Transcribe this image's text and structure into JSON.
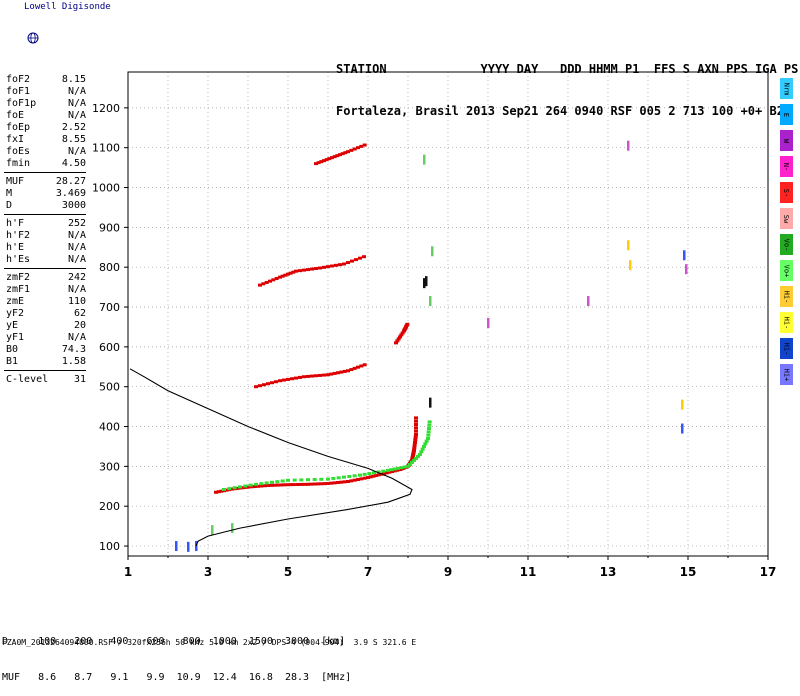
{
  "branding": {
    "text": "Lowell Digisonde"
  },
  "header": {
    "line1": "STATION             YYYY DAY   DDD HHMM P1  FFS S AXN PPS IGA PS",
    "line2": "Fortaleza, Brasil 2013 Sep21 264 0940 RSF 005 2 713 100 +0+ B2"
  },
  "parameters": [
    {
      "group": [
        {
          "name": "foF2",
          "value": "8.15"
        },
        {
          "name": "foF1",
          "value": "N/A"
        },
        {
          "name": "foF1p",
          "value": "N/A"
        },
        {
          "name": "foE",
          "value": "N/A"
        },
        {
          "name": "foEp",
          "value": "2.52"
        },
        {
          "name": "fxI",
          "value": "8.55"
        },
        {
          "name": "foEs",
          "value": "N/A"
        },
        {
          "name": "fmin",
          "value": "4.50"
        }
      ]
    },
    {
      "group": [
        {
          "name": "MUF",
          "value": "28.27"
        },
        {
          "name": "M",
          "value": "3.469"
        },
        {
          "name": "D",
          "value": "3000"
        }
      ]
    },
    {
      "group": [
        {
          "name": "h'F",
          "value": "252"
        },
        {
          "name": "h'F2",
          "value": "N/A"
        },
        {
          "name": "h'E",
          "value": "N/A"
        },
        {
          "name": "h'Es",
          "value": "N/A"
        }
      ]
    },
    {
      "group": [
        {
          "name": "zmF2",
          "value": "242"
        },
        {
          "name": "zmF1",
          "value": "N/A"
        },
        {
          "name": "zmE",
          "value": "110"
        },
        {
          "name": "yF2",
          "value": "62"
        },
        {
          "name": "yE",
          "value": "20"
        },
        {
          "name": "yF1",
          "value": "N/A"
        },
        {
          "name": "B0",
          "value": "74.3"
        },
        {
          "name": "B1",
          "value": "1.58"
        }
      ]
    },
    {
      "group": [
        {
          "name": "C-level",
          "value": "31"
        }
      ]
    }
  ],
  "legend": [
    {
      "label": "Nrm",
      "color": "#33ccff"
    },
    {
      "label": "E",
      "color": "#00aaff"
    },
    {
      "label": "W",
      "color": "#aa22cc"
    },
    {
      "label": "N-",
      "color": "#ff22cc"
    },
    {
      "label": "S-",
      "color": "#ff2222"
    },
    {
      "label": "Sw",
      "color": "#ffaaaa"
    },
    {
      "label": "Vo-",
      "color": "#22aa22"
    },
    {
      "label": "Vo+",
      "color": "#66ff66"
    },
    {
      "label": "Hi-",
      "color": "#ffcc33"
    },
    {
      "label": "Hi-",
      "color": "#ffff33"
    },
    {
      "label": "Hi-",
      "color": "#1144cc"
    },
    {
      "label": "Hi+",
      "color": "#7777ff"
    }
  ],
  "footer": {
    "row_d": "D     100   200   400   600   800  1000  1500  3000  [km]",
    "row_muf": "MUF   8.6   8.7   9.1   9.9  10.9  12.4  16.8  28.3  [MHz]",
    "meta": "FZA0M_2013264094000.RSF / 320fx256h 50 kHz 5.0 km 2x2 / DPS-4 (904-904)  3.9 S 321.6 E"
  },
  "chart_data": {
    "type": "scatter",
    "title": "",
    "xlabel": "",
    "ylabel": "",
    "xlim": [
      1,
      17
    ],
    "ylim": [
      75,
      1290
    ],
    "x_ticks": [
      1,
      3,
      5,
      7,
      9,
      11,
      13,
      15,
      17
    ],
    "y_ticks": [
      100,
      200,
      300,
      400,
      500,
      600,
      700,
      800,
      900,
      1000,
      1100,
      1200
    ],
    "grid": true,
    "series": [
      {
        "color": "#dd0000",
        "kind": "trace",
        "points": [
          [
            3.2,
            235
          ],
          [
            3.6,
            243
          ],
          [
            4.0,
            248
          ],
          [
            4.5,
            252
          ],
          [
            5.0,
            254
          ],
          [
            5.5,
            255
          ],
          [
            6.0,
            257
          ],
          [
            6.5,
            262
          ],
          [
            7.0,
            272
          ],
          [
            7.4,
            282
          ],
          [
            7.8,
            292
          ],
          [
            8.0,
            300
          ],
          [
            8.1,
            315
          ],
          [
            8.15,
            340
          ],
          [
            8.2,
            380
          ],
          [
            8.2,
            430
          ]
        ]
      },
      {
        "color": "#33dd33",
        "kind": "trace",
        "points": [
          [
            3.4,
            242
          ],
          [
            4.2,
            255
          ],
          [
            5.0,
            265
          ],
          [
            6.0,
            268
          ],
          [
            6.8,
            278
          ],
          [
            7.5,
            290
          ],
          [
            8.0,
            300
          ],
          [
            8.3,
            330
          ],
          [
            8.5,
            370
          ],
          [
            8.55,
            420
          ]
        ]
      },
      {
        "color": "#dd0000",
        "kind": "trace",
        "points": [
          [
            4.2,
            500
          ],
          [
            4.8,
            515
          ],
          [
            5.4,
            525
          ],
          [
            6.0,
            530
          ],
          [
            6.5,
            540
          ],
          [
            7.0,
            558
          ]
        ]
      },
      {
        "color": "#dd0000",
        "kind": "trace",
        "points": [
          [
            4.3,
            755
          ],
          [
            4.8,
            775
          ],
          [
            5.2,
            790
          ],
          [
            5.8,
            798
          ],
          [
            6.4,
            808
          ],
          [
            7.0,
            830
          ]
        ]
      },
      {
        "color": "#dd0000",
        "kind": "trace",
        "points": [
          [
            5.7,
            1060
          ],
          [
            6.1,
            1075
          ],
          [
            6.5,
            1090
          ],
          [
            7.0,
            1110
          ]
        ]
      },
      {
        "color": "#dd0000",
        "kind": "trace",
        "points": [
          [
            7.7,
            610
          ],
          [
            7.9,
            640
          ],
          [
            8.0,
            660
          ]
        ]
      },
      {
        "color": "#111111",
        "kind": "dots",
        "points": [
          [
            8.55,
            460
          ],
          [
            8.4,
            760
          ],
          [
            8.45,
            765
          ]
        ]
      },
      {
        "color": "#3355ff",
        "kind": "dots",
        "points": [
          [
            2.2,
            100
          ],
          [
            2.5,
            98
          ],
          [
            2.7,
            100
          ],
          [
            14.85,
            395
          ],
          [
            14.9,
            830
          ]
        ]
      },
      {
        "color": "#ffcc00",
        "kind": "dots",
        "points": [
          [
            14.85,
            455
          ],
          [
            13.5,
            855
          ],
          [
            13.55,
            805
          ]
        ]
      },
      {
        "color": "#cc55cc",
        "kind": "dots",
        "points": [
          [
            10.0,
            660
          ],
          [
            12.5,
            715
          ],
          [
            13.5,
            1105
          ],
          [
            14.95,
            795
          ]
        ]
      },
      {
        "color": "#66cc66",
        "kind": "dots",
        "points": [
          [
            3.6,
            145
          ],
          [
            3.1,
            140
          ],
          [
            8.4,
            1070
          ],
          [
            8.6,
            840
          ],
          [
            8.55,
            715
          ]
        ]
      }
    ],
    "profile": {
      "color": "#000000",
      "points": [
        [
          2.7,
          100
        ],
        [
          2.75,
          112
        ],
        [
          3.0,
          125
        ],
        [
          3.8,
          145
        ],
        [
          5.0,
          168
        ],
        [
          6.5,
          192
        ],
        [
          7.5,
          210
        ],
        [
          8.05,
          230
        ],
        [
          8.1,
          242
        ],
        [
          7.6,
          270
        ],
        [
          7.0,
          295
        ],
        [
          6.0,
          325
        ],
        [
          5.0,
          360
        ],
        [
          4.0,
          400
        ],
        [
          3.0,
          445
        ],
        [
          2.0,
          490
        ],
        [
          1.4,
          525
        ],
        [
          1.05,
          545
        ]
      ]
    }
  }
}
